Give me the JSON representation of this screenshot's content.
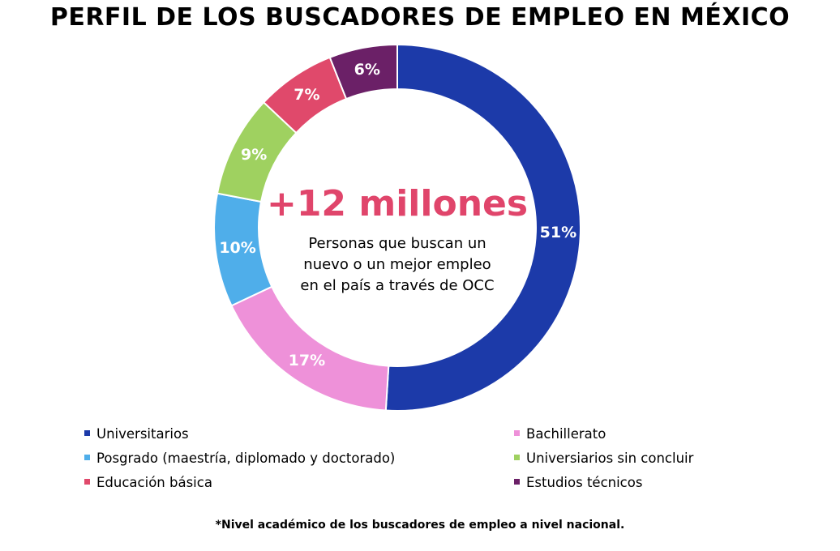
{
  "chart_data": {
    "type": "pie",
    "variant": "donut",
    "title": "PERFIL DE LOS BUSCADORES DE EMPLEO EN MÉXICO",
    "categories": [
      "Universitarios",
      "Bachillerato",
      "Posgrado (maestría, diplomado y doctorado)",
      "Universiarios sin concluir",
      "Educación básica",
      "Estudios técnicos"
    ],
    "values": [
      51,
      17,
      10,
      9,
      7,
      6
    ],
    "data_labels": [
      "51%",
      "17%",
      "10%",
      "9%",
      "7%",
      "6%"
    ],
    "colors": [
      "#1c3aa9",
      "#ee91d9",
      "#4faeea",
      "#9fd160",
      "#e0496b",
      "#6b2067"
    ],
    "legend_position": "bottom",
    "center": {
      "headline": "+12 millones",
      "headline_color": "#e0456b",
      "lines": [
        "Personas que buscan un",
        "nuevo o un mejor empleo",
        "en el país a través de OCC"
      ]
    }
  },
  "footnote": "*Nivel académico de los buscadores de empleo a nivel nacional."
}
